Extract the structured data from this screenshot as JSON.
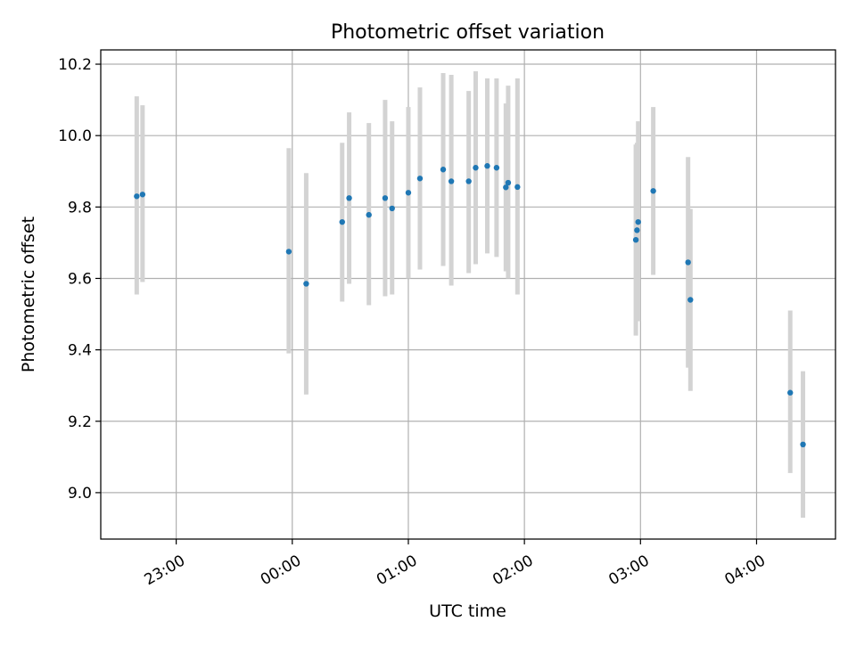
{
  "chart_data": {
    "type": "scatter",
    "title": "Photometric offset variation",
    "xlabel": "UTC time",
    "ylabel": "Photometric offset",
    "x_unit": "UTC time of day (hours, 23:00 on previous day shown as -1)",
    "xlim": [
      -1.65,
      4.68
    ],
    "ylim": [
      8.87,
      10.24
    ],
    "x_ticks": [
      {
        "value": -1,
        "label": "23:00"
      },
      {
        "value": 0,
        "label": "00:00"
      },
      {
        "value": 1,
        "label": "01:00"
      },
      {
        "value": 2,
        "label": "02:00"
      },
      {
        "value": 3,
        "label": "03:00"
      },
      {
        "value": 4,
        "label": "04:00"
      }
    ],
    "y_ticks": [
      {
        "value": 9.0,
        "label": "9.0"
      },
      {
        "value": 9.2,
        "label": "9.2"
      },
      {
        "value": 9.4,
        "label": "9.4"
      },
      {
        "value": 9.6,
        "label": "9.6"
      },
      {
        "value": 9.8,
        "label": "9.8"
      },
      {
        "value": 10.0,
        "label": "10.0"
      },
      {
        "value": 10.2,
        "label": "10.2"
      }
    ],
    "grid": true,
    "colors": {
      "point": "#1f77b4",
      "errorbar": "#d3d3d3",
      "grid": "#b0b0b0",
      "axes": "#000000"
    },
    "points": [
      {
        "x": -1.34,
        "y": 9.83,
        "lo": 9.555,
        "hi": 10.11
      },
      {
        "x": -1.29,
        "y": 9.835,
        "lo": 9.59,
        "hi": 10.085
      },
      {
        "x": -0.03,
        "y": 9.675,
        "lo": 9.39,
        "hi": 9.965
      },
      {
        "x": 0.12,
        "y": 9.585,
        "lo": 9.275,
        "hi": 9.895
      },
      {
        "x": 0.43,
        "y": 9.758,
        "lo": 9.535,
        "hi": 9.98
      },
      {
        "x": 0.49,
        "y": 9.825,
        "lo": 9.585,
        "hi": 10.065
      },
      {
        "x": 0.66,
        "y": 9.778,
        "lo": 9.525,
        "hi": 10.035
      },
      {
        "x": 0.8,
        "y": 9.825,
        "lo": 9.55,
        "hi": 10.1
      },
      {
        "x": 0.86,
        "y": 9.796,
        "lo": 9.555,
        "hi": 10.04
      },
      {
        "x": 1.0,
        "y": 9.84,
        "lo": 9.6,
        "hi": 10.08
      },
      {
        "x": 1.1,
        "y": 9.88,
        "lo": 9.625,
        "hi": 10.135
      },
      {
        "x": 1.3,
        "y": 9.905,
        "lo": 9.635,
        "hi": 10.175
      },
      {
        "x": 1.37,
        "y": 9.872,
        "lo": 9.58,
        "hi": 10.17
      },
      {
        "x": 1.52,
        "y": 9.872,
        "lo": 9.615,
        "hi": 10.125
      },
      {
        "x": 1.58,
        "y": 9.91,
        "lo": 9.64,
        "hi": 10.18
      },
      {
        "x": 1.68,
        "y": 9.915,
        "lo": 9.67,
        "hi": 10.16
      },
      {
        "x": 1.76,
        "y": 9.91,
        "lo": 9.66,
        "hi": 10.16
      },
      {
        "x": 1.84,
        "y": 9.855,
        "lo": 9.62,
        "hi": 10.09
      },
      {
        "x": 1.86,
        "y": 9.868,
        "lo": 9.6,
        "hi": 10.14
      },
      {
        "x": 1.94,
        "y": 9.856,
        "lo": 9.555,
        "hi": 10.16
      },
      {
        "x": 2.96,
        "y": 9.708,
        "lo": 9.44,
        "hi": 9.975
      },
      {
        "x": 2.97,
        "y": 9.735,
        "lo": 9.49,
        "hi": 9.98
      },
      {
        "x": 2.98,
        "y": 9.758,
        "lo": 9.48,
        "hi": 10.04
      },
      {
        "x": 3.11,
        "y": 9.845,
        "lo": 9.61,
        "hi": 10.08
      },
      {
        "x": 3.41,
        "y": 9.645,
        "lo": 9.35,
        "hi": 9.94
      },
      {
        "x": 3.43,
        "y": 9.54,
        "lo": 9.285,
        "hi": 9.795
      },
      {
        "x": 4.29,
        "y": 9.28,
        "lo": 9.055,
        "hi": 9.51
      },
      {
        "x": 4.4,
        "y": 9.135,
        "lo": 8.93,
        "hi": 9.34
      }
    ]
  }
}
